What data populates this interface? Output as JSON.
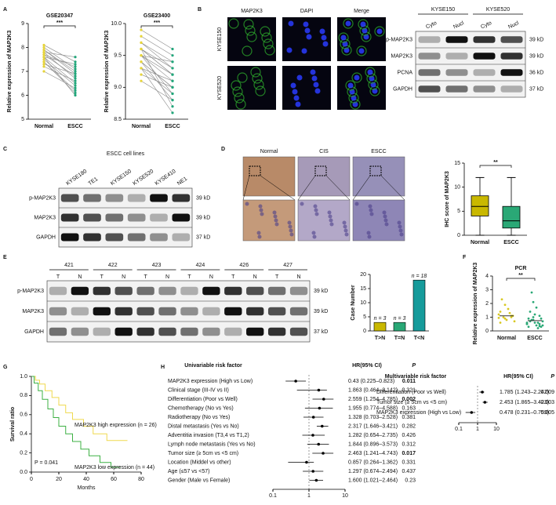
{
  "figure": {
    "letters": [
      "A",
      "B",
      "C",
      "D",
      "E",
      "F",
      "G",
      "H"
    ],
    "b_image": {
      "stains": [
        "MAP2K3",
        "DAPI",
        "Merge"
      ],
      "cells": [
        "KYSE150",
        "KYSE520"
      ]
    },
    "d_image": {
      "tissues": [
        "Normal",
        "CIS",
        "ESCC"
      ]
    },
    "blots": [
      {
        "groups": [
          "KYSE150",
          "KYSE520"
        ],
        "lanes": [
          "Cyto",
          "Nucl",
          "Cyto",
          "Nucl"
        ],
        "rows": [
          {
            "label": "p-MAP2K3",
            "kd": "39 kD"
          },
          {
            "label": "MAP2K3",
            "kd": "39 kD"
          },
          {
            "label": "PCNA",
            "kd": "36 kD"
          },
          {
            "label": "GAPDH",
            "kd": "37 kD"
          }
        ]
      },
      {
        "title": "ESCC cell lines",
        "lanes": [
          "KYSE180",
          "TE1",
          "KYSE150",
          "KYSE520",
          "KYSE410",
          "NE1"
        ],
        "rows": [
          {
            "label": "p-MAP2K3",
            "kd": "39 kD"
          },
          {
            "label": "MAP2K3",
            "kd": "39 kD"
          },
          {
            "label": "GAPDH",
            "kd": "37 kD"
          }
        ]
      },
      {
        "groups": [
          "421",
          "422",
          "423",
          "424",
          "426",
          "427"
        ],
        "lanes": [
          "T",
          "N",
          "T",
          "N",
          "T",
          "N",
          "T",
          "N",
          "T",
          "N",
          "T",
          "N"
        ],
        "rows": [
          {
            "label": "p-MAP2K3",
            "kd": "39 kD"
          },
          {
            "label": "MAP2K3",
            "kd": "39 kD"
          },
          {
            "label": "GAPDH",
            "kd": "37 kD"
          }
        ]
      }
    ]
  },
  "chart_data": [
    {
      "type": "paired",
      "title": "GSE20347",
      "ylabel": "Relative expression of MAP2K3",
      "categories": [
        "Normal",
        "ESCC"
      ],
      "significance": "***",
      "colors": [
        "#e6d43a",
        "#21a67a"
      ],
      "line_color": "#8a8a8a",
      "ylim": [
        5,
        9
      ],
      "yticks": [
        5,
        6,
        7,
        8,
        9
      ],
      "start": [
        7.9,
        7.7,
        7.6,
        8.1,
        7.4,
        7.8,
        7.3,
        7.6,
        7.2,
        8.0,
        7.5,
        7.7,
        7.0,
        7.9,
        7.4,
        7.6,
        7.8
      ],
      "end": [
        7.0,
        6.8,
        6.5,
        7.4,
        6.2,
        7.6,
        6.9,
        6.0,
        6.6,
        7.1,
        6.4,
        7.2,
        6.3,
        6.9,
        6.1,
        7.3,
        6.7
      ]
    },
    {
      "type": "paired",
      "title": "GSE23400",
      "ylabel": "Relative expression of MAP2K3",
      "categories": [
        "Normal",
        "ESCC"
      ],
      "significance": "***",
      "colors": [
        "#e6d43a",
        "#21a67a"
      ],
      "line_color": "#8a8a8a",
      "ylim": [
        8.5,
        10
      ],
      "yticks": [
        8.5,
        {
          "value": 9,
          "label": "9.0"
        },
        9.5,
        {
          "value": 10,
          "label": "10.0"
        }
      ],
      "start": [
        9.6,
        9.4,
        9.5,
        9.7,
        9.3,
        9.6,
        9.8,
        9.4,
        9.5,
        9.2,
        9.6,
        9.7,
        9.3,
        9.5,
        9.4,
        9.9,
        9.1,
        9.6,
        9.5,
        9.3
      ],
      "end": [
        9.2,
        9.0,
        9.1,
        9.4,
        8.9,
        9.3,
        9.5,
        8.8,
        9.2,
        9.0,
        8.7,
        9.3,
        9.1,
        8.9,
        9.0,
        9.6,
        8.8,
        9.2,
        9.4,
        8.6
      ]
    },
    {
      "type": "box",
      "ylabel": "IHC score of MAP2K3",
      "categories": [
        "Normal",
        "ESCC"
      ],
      "significance": "**",
      "colors": [
        "#c9b800",
        "#2aa876"
      ],
      "ylim": [
        0,
        15
      ],
      "yticks": [
        0,
        5,
        10,
        15
      ],
      "boxes": [
        {
          "min": 0,
          "q1": 4,
          "median": 6,
          "q3": 8.2,
          "max": 12
        },
        {
          "min": 0,
          "q1": 1.5,
          "median": 3,
          "q3": 6,
          "max": 12
        }
      ]
    },
    {
      "type": "bar",
      "ylabel": "Case Number",
      "categories": [
        "T>N",
        "T=N",
        "T<N"
      ],
      "values": [
        3,
        3,
        18
      ],
      "value_labels": [
        "n = 3",
        "n = 3",
        "n = 18"
      ],
      "colors": [
        "#c9b800",
        "#2aa876",
        "#169b9b"
      ],
      "ylim": [
        0,
        20
      ],
      "yticks": [
        0,
        5,
        10,
        15,
        20
      ]
    },
    {
      "type": "dot",
      "title": "PCR",
      "ylabel": "Relative expression of MAP2K3",
      "categories": [
        "Normal",
        "ESCC"
      ],
      "significance": "**",
      "colors": [
        "#d8c820",
        "#2aa876"
      ],
      "ylim": [
        0,
        4
      ],
      "yticks": [
        0,
        1,
        2,
        3,
        4
      ],
      "means": [
        1.1,
        0.75
      ],
      "values": [
        [
          1.2,
          0.9,
          1.0,
          1.4,
          0.8,
          1.1,
          2.3,
          1.6,
          0.7,
          1.0,
          1.3,
          0.95,
          1.9,
          1.1,
          0.6
        ],
        [
          0.5,
          0.8,
          1.1,
          0.3,
          0.6,
          0.9,
          1.4,
          0.4,
          0.7,
          2.8,
          0.2,
          0.6,
          1.0,
          0.5,
          0.9,
          1.2,
          0.3,
          0.7,
          1.7,
          0.4,
          0.8,
          0.6,
          0.5,
          2.1,
          0.35
        ]
      ]
    },
    {
      "type": "survival",
      "xlabel": "Months",
      "ylabel": "Survival ratio",
      "annotation": "P = 0.041",
      "xlim": [
        0,
        80
      ],
      "xticks": [
        0,
        20,
        40,
        60,
        80
      ],
      "ylim": [
        0,
        1
      ],
      "yticks": [
        {
          "value": 0,
          "label": "0.0"
        },
        0.2,
        0.4,
        0.6,
        0.8,
        {
          "value": 1,
          "label": "1.0"
        }
      ],
      "series": [
        {
          "name": "MAP2K3 high expression (n = 26)",
          "color": "#efd94e",
          "x": [
            0,
            3,
            3,
            6,
            6,
            10,
            10,
            15,
            15,
            20,
            20,
            25,
            25,
            30,
            30,
            38,
            38,
            45,
            45,
            55,
            55,
            70
          ],
          "values": [
            1,
            1,
            0.96,
            0.96,
            0.92,
            0.92,
            0.85,
            0.85,
            0.78,
            0.78,
            0.7,
            0.7,
            0.62,
            0.62,
            0.55,
            0.55,
            0.48,
            0.48,
            0.4,
            0.4,
            0.33,
            0.33
          ]
        },
        {
          "name": "MAP2K3 low expression (n = 44)",
          "color": "#3cb043",
          "x": [
            0,
            2,
            2,
            5,
            5,
            8,
            8,
            12,
            12,
            16,
            16,
            20,
            20,
            25,
            25,
            30,
            30,
            36,
            36,
            42,
            42,
            50,
            50,
            58,
            58,
            65
          ],
          "values": [
            1,
            1,
            0.93,
            0.93,
            0.85,
            0.85,
            0.76,
            0.76,
            0.66,
            0.66,
            0.57,
            0.57,
            0.48,
            0.48,
            0.4,
            0.4,
            0.32,
            0.32,
            0.24,
            0.24,
            0.17,
            0.17,
            0.1,
            0.1,
            0.05,
            0.05
          ]
        }
      ]
    },
    {
      "type": "forest",
      "title": "Univariable risk factor",
      "columns": [
        "HR(95% CI)",
        "P"
      ],
      "log": true,
      "reference": 1,
      "xlim": [
        0.1,
        10
      ],
      "xticks": [
        0.1,
        1,
        10
      ],
      "labels": [
        "MAP2K3 expression (High vs Low)",
        "Clinical stage (III-IV vs II)",
        "Differentiation (Poor vs Well)",
        "Chemotherapy (No vs Yes)",
        "Radiotherapy (No vs Yes)",
        "Distal metastasis (Yes vs No)",
        "Adventitia invasion (T3,4 vs T1,2)",
        "Lymph node metastasis (Yes vs No)",
        "Tumor size (≥ 5cm vs <5 cm)",
        "Location (Middel vs other)",
        "Age (≤57 vs <57)",
        "Gender (Male vs Female)"
      ],
      "values": [
        0.43,
        1.863,
        2.559,
        1.955,
        1.328,
        2.317,
        1.282,
        1.844,
        2.463,
        0.857,
        1.297,
        1.6
      ],
      "low": [
        0.225,
        0.464,
        1.254,
        0.774,
        0.703,
        1.646,
        0.654,
        0.896,
        1.241,
        0.264,
        0.674,
        1.021
      ],
      "high": [
        0.823,
        3.142,
        4.785,
        4.588,
        2.528,
        3.421,
        2.735,
        3.573,
        4.743,
        1.362,
        2.494,
        2.464
      ],
      "value_labels": [
        "0.43 (0.225–0.823)",
        "1.863 (0.464–3.142)",
        "2.559 (1.254–4.785)",
        "1.955 (0.774–4.588)",
        "1.328 (0.703–2.528)",
        "2.317 (1.646–3.421)",
        "1.282 (0.654–2.735)",
        "1.844 (0.896–3.573)",
        "2.463 (1.241–4.743)",
        "0.857 (0.264–1.362)",
        "1.297 (0.674–2.494)",
        "1.600 (1.021–2.464)"
      ],
      "p": [
        0.011,
        0.321,
        0.002,
        0.163,
        0.381,
        0.282,
        0.426,
        0.312,
        0.017,
        0.331,
        0.437,
        0.23
      ],
      "bold": [
        true,
        false,
        true,
        false,
        false,
        false,
        false,
        false,
        true,
        false,
        false,
        false
      ]
    },
    {
      "type": "forest",
      "title": "Multivariable risk factor",
      "columns": [
        "HR(95% CI)",
        "P"
      ],
      "log": true,
      "reference": 1,
      "xlim": [
        0.1,
        10
      ],
      "xticks": [
        0.1,
        1,
        10
      ],
      "labels": [
        "Differentiation (Poor vs Well)",
        "Tumor size (≥ 5cm vs <5 cm)",
        "MAP2K3 expression (High vs Low)"
      ],
      "values": [
        1.785,
        2.453,
        0.478
      ],
      "low": [
        1.243,
        1.865,
        0.231
      ],
      "high": [
        2.242,
        3.423,
        0.759
      ],
      "value_labels": [
        "1.785 (1.243–2.242)",
        "2.453 (1.865–3.423)",
        "0.478 (0.231–0.759)"
      ],
      "p": [
        0.009,
        0.003,
        0.005
      ],
      "bold": [
        false,
        false,
        false
      ]
    }
  ]
}
